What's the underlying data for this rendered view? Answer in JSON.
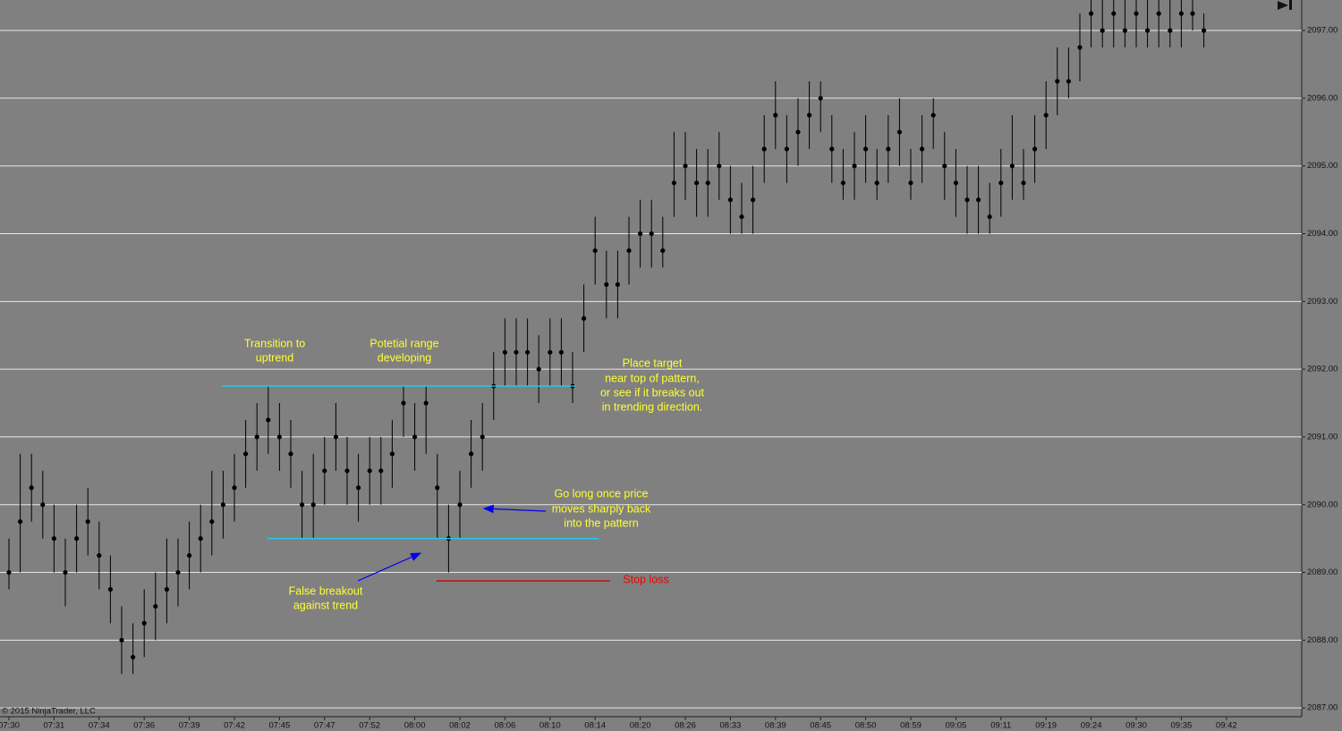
{
  "chart_data": {
    "type": "ohlc",
    "footer": "© 2015 NinjaTrader, LLC",
    "ylim": [
      2086.87,
      2097.45
    ],
    "yticks": [
      {
        "value": 2087,
        "label": "2087.00"
      },
      {
        "value": 2088,
        "label": "2088.00"
      },
      {
        "value": 2089,
        "label": "2089.00"
      },
      {
        "value": 2090,
        "label": "2090.00"
      },
      {
        "value": 2091,
        "label": "2091.00"
      },
      {
        "value": 2092,
        "label": "2092.00"
      },
      {
        "value": 2093,
        "label": "2093.00"
      },
      {
        "value": 2094,
        "label": "2094.00"
      },
      {
        "value": 2095,
        "label": "2095.00"
      },
      {
        "value": 2096,
        "label": "2096.00"
      },
      {
        "value": 2097,
        "label": "2097.00"
      }
    ],
    "grid": true,
    "color": "#000000",
    "categories": [
      "07:30",
      null,
      null,
      null,
      "07:31",
      null,
      null,
      null,
      "07:34",
      null,
      null,
      null,
      "07:36",
      null,
      null,
      null,
      "07:39",
      null,
      null,
      null,
      "07:42",
      null,
      null,
      null,
      "07:45",
      null,
      null,
      null,
      "07:47",
      null,
      null,
      null,
      "07:52",
      null,
      null,
      null,
      "08:00",
      null,
      null,
      null,
      "08:02",
      null,
      null,
      null,
      "08:06",
      null,
      null,
      null,
      "08:10",
      null,
      null,
      null,
      "08:14",
      null,
      null,
      null,
      "08:20",
      null,
      null,
      null,
      "08:26",
      null,
      null,
      null,
      "08:33",
      null,
      null,
      null,
      "08:39",
      null,
      null,
      null,
      "08:45",
      null,
      null,
      null,
      "08:50",
      null,
      null,
      null,
      "08:59",
      null,
      null,
      null,
      "09:05",
      null,
      null,
      null,
      "09:11",
      null,
      null,
      null,
      "09:19",
      null,
      null,
      null,
      "09:24",
      null,
      null,
      null,
      "09:30",
      null,
      null,
      null,
      "09:35",
      null,
      null,
      null,
      "09:42",
      null,
      null,
      null
    ],
    "close": [
      2089,
      2089.75,
      2090.25,
      2090,
      2089.5,
      2089,
      2089.5,
      2089.75,
      2089.25,
      2088.75,
      2088,
      2087.75,
      2088.25,
      2088.5,
      2088.75,
      2089,
      2089.25,
      2089.5,
      2089.75,
      2090,
      2090.25,
      2090.75,
      2091,
      2091.25,
      2091,
      2090.75,
      2090,
      2090,
      2090.5,
      2091,
      2090.5,
      2090.25,
      2090.5,
      2090.5,
      2090.75,
      2091.5,
      2091,
      2091.5,
      2090.25,
      2089.5,
      2090,
      2090.75,
      2091,
      2091.75,
      2092.25,
      2092.25,
      2092.25,
      2092,
      2092.25,
      2092.25,
      2091.75,
      2092.75,
      2093.75,
      2093.25,
      2093.25,
      2093.75,
      2094,
      2094,
      2093.75,
      2094.75,
      2095,
      2094.75,
      2094.75,
      2095,
      2094.5,
      2094.25,
      2094.5,
      2095.25,
      2095.75,
      2095.25,
      2095.5,
      2095.75,
      2096,
      2095.25,
      2094.75,
      2095,
      2095.25,
      2094.75,
      2095.25,
      2095.5,
      2094.75,
      2095.25,
      2095.75,
      2095,
      2094.75,
      2094.5,
      2094.5,
      2094.25,
      2094.75,
      2095,
      2094.75,
      2095.25,
      2095.75,
      2096.25,
      2096.25,
      2096.75,
      2097.25,
      2097,
      2097.25,
      2097,
      2097.25,
      2097,
      2097.25,
      2097,
      2097.25,
      2097.25,
      2097,
      null,
      null,
      null,
      null,
      null
    ],
    "high": [
      2089.5,
      2090.75,
      2090.75,
      2090.5,
      2090,
      2089.5,
      2090,
      2090.25,
      2089.75,
      2089.25,
      2088.5,
      2088.25,
      2088.75,
      2089,
      2089.5,
      2089.5,
      2089.75,
      2090,
      2090.5,
      2090.5,
      2090.75,
      2091.25,
      2091.5,
      2091.75,
      2091.5,
      2091.25,
      2090.5,
      2090.75,
      2091,
      2091.5,
      2091,
      2090.75,
      2091,
      2091,
      2091.25,
      2091.75,
      2091.5,
      2091.75,
      2090.75,
      2090,
      2090.5,
      2091.25,
      2091.5,
      2092.25,
      2092.75,
      2092.75,
      2092.75,
      2092.5,
      2092.75,
      2092.75,
      2092.25,
      2093.25,
      2094.25,
      2093.75,
      2093.75,
      2094.25,
      2094.5,
      2094.5,
      2094.25,
      2095.5,
      2095.5,
      2095.25,
      2095.25,
      2095.5,
      2095,
      2094.75,
      2095,
      2095.75,
      2096.25,
      2095.75,
      2096,
      2096.25,
      2096.25,
      2095.75,
      2095.25,
      2095.5,
      2095.75,
      2095.25,
      2095.75,
      2096,
      2095.25,
      2095.75,
      2096,
      2095.5,
      2095.25,
      2095,
      2095,
      2094.75,
      2095.25,
      2095.75,
      2095.25,
      2095.75,
      2096.25,
      2096.75,
      2096.75,
      2097.25,
      2097.45,
      2097.45,
      2097.45,
      2097.45,
      2097.45,
      2097.45,
      2097.45,
      2097.45,
      2097.45,
      2097.45,
      2097.25,
      null,
      null,
      null,
      null,
      null
    ],
    "low": [
      2088.75,
      2089,
      2089.75,
      2089.5,
      2089,
      2088.5,
      2089,
      2089.25,
      2088.75,
      2088.25,
      2087.5,
      2087.5,
      2087.75,
      2088,
      2088.25,
      2088.5,
      2088.75,
      2089,
      2089.25,
      2089.5,
      2089.75,
      2090.25,
      2090.5,
      2090.75,
      2090.5,
      2090.25,
      2089.5,
      2089.5,
      2090,
      2090.5,
      2090,
      2089.75,
      2090,
      2090,
      2090.25,
      2091,
      2090.5,
      2090.75,
      2089.5,
      2089,
      2089.5,
      2090.25,
      2090.5,
      2091.25,
      2091.75,
      2091.75,
      2091.75,
      2091.5,
      2091.75,
      2091.75,
      2091.5,
      2092.25,
      2093.25,
      2092.75,
      2092.75,
      2093.25,
      2093.5,
      2093.5,
      2093.5,
      2094.25,
      2094.5,
      2094.25,
      2094.25,
      2094.5,
      2094,
      2094,
      2094,
      2094.75,
      2095.25,
      2094.75,
      2095,
      2095.25,
      2095.5,
      2094.75,
      2094.5,
      2094.5,
      2094.75,
      2094.5,
      2094.75,
      2095,
      2094.5,
      2094.75,
      2095.25,
      2094.5,
      2094.25,
      2094,
      2094,
      2094,
      2094.25,
      2094.5,
      2094.5,
      2094.75,
      2095.25,
      2095.75,
      2096,
      2096.25,
      2096.75,
      2096.75,
      2096.75,
      2096.75,
      2096.75,
      2096.75,
      2096.75,
      2096.75,
      2096.75,
      2097,
      2096.75,
      null,
      null,
      null,
      null,
      null
    ],
    "levels": [
      {
        "value": 2091.75,
        "from": 19,
        "to": 50,
        "color": "#22ccee"
      },
      {
        "value": 2089.5,
        "from": 23,
        "to": 52,
        "color": "#22ccee"
      },
      {
        "value": 2088.875,
        "from": 38,
        "to": 53,
        "color": "#cc0000"
      }
    ],
    "annotations": [
      {
        "lines": [
          "Transition to",
          "uptrend"
        ]
      },
      {
        "lines": [
          "Potetial range",
          "developing"
        ]
      },
      {
        "lines": [
          "Place target",
          "near top of pattern,",
          "or see if it breaks out",
          "in trending direction."
        ]
      },
      {
        "lines": [
          "Go long once price",
          "moves sharply back",
          "into the pattern"
        ]
      },
      {
        "lines": [
          "False breakout",
          "against trend"
        ]
      },
      {
        "lines": [
          "Stop loss"
        ]
      }
    ]
  }
}
